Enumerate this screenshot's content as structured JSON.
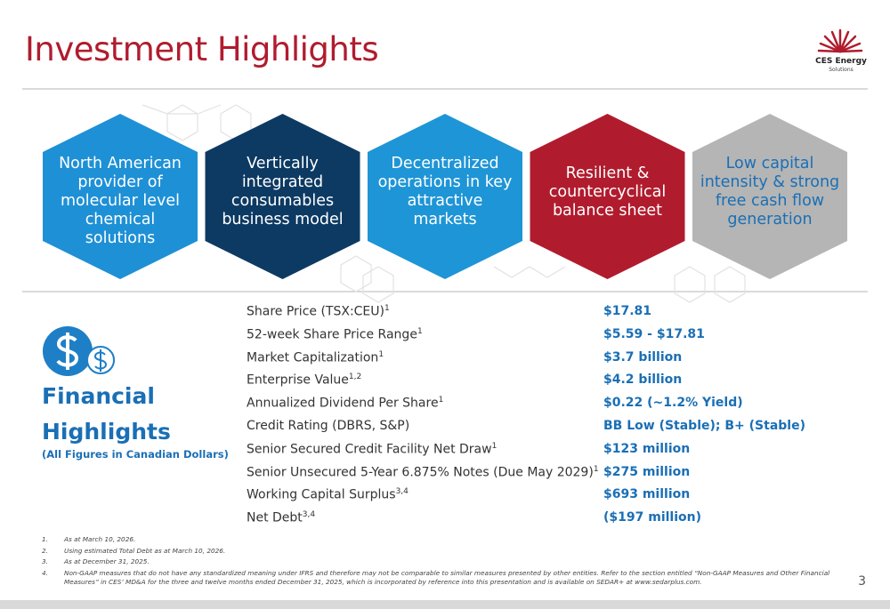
{
  "header": {
    "title": "Investment Highlights",
    "logo": {
      "name": "CES Energy",
      "tagline": "Solutions"
    }
  },
  "highlights": [
    {
      "label": "North American provider of molecular level chemical solutions"
    },
    {
      "label": "Vertically integrated consumables business model"
    },
    {
      "label": "Decentralized operations in key attractive markets"
    },
    {
      "label": "Resilient & countercyclical balance sheet"
    },
    {
      "label": "Low capital intensity & strong free cash flow generation"
    }
  ],
  "financial": {
    "heading": "Financial Highlights",
    "note": "(All Figures in Canadian Dollars)",
    "rows": [
      {
        "label": "Share Price (TSX:CEU)",
        "sup": "1",
        "value": "$17.81"
      },
      {
        "label": "52-week Share Price Range",
        "sup": "1",
        "value": "$5.59 - $17.81"
      },
      {
        "label": "Market Capitalization",
        "sup": "1",
        "value": "$3.7 billion"
      },
      {
        "label": "Enterprise Value",
        "sup": "1,2",
        "value": "$4.2 billion"
      },
      {
        "label": "Annualized Dividend Per Share",
        "sup": "1",
        "value": "$0.22 (~1.2% Yield)"
      },
      {
        "label": "Credit Rating (DBRS, S&P)",
        "value": "BB Low (Stable); B+ (Stable)"
      },
      {
        "label": "Senior Secured Credit Facility Net Draw",
        "sup": "1",
        "value": "$123 million"
      },
      {
        "label": "Senior Unsecured 5-Year 6.875% Notes (Due May 2029)",
        "sup": "1",
        "value": "$275 million"
      },
      {
        "label": "Working Capital Surplus",
        "sup": "3,4",
        "value": "$693 million"
      },
      {
        "label": "Net Debt",
        "sup": "3,4",
        "value": "($197 million)"
      }
    ]
  },
  "footnotes": [
    {
      "number": "1.",
      "text": "As at March 10, 2026."
    },
    {
      "number": "2.",
      "text": "Using estimated Total Debt as at March 10, 2026."
    },
    {
      "number": "3.",
      "text": "As at December 31, 2025."
    },
    {
      "number": "4.",
      "text": "Non-GAAP measures that do not have any standardized meaning under IFRS and therefore may not be comparable to similar measures presented by other entities. Refer to the section entitled “Non-GAAP Measures and Other Financial Measures” in CES’ MD&A for the three and twelve months ended December 31, 2025, which is incorporated by reference into this presentation and is available on SEDAR+ at www.sedarplus.com."
    }
  ],
  "page_number": "3"
}
